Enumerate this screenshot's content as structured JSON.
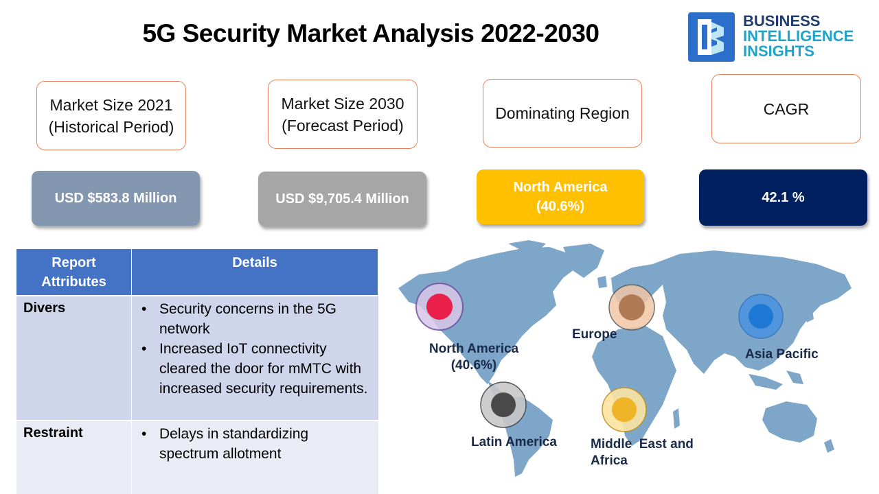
{
  "title": "5G Security Market Analysis 2022-2030",
  "logo": {
    "line1": "BUSINESS",
    "line2": "INTELLIGENCE",
    "line3": "INSIGHTS"
  },
  "cards": [
    {
      "label_line1": "Market Size 2021",
      "label_line2": "(Historical Period)",
      "value": "USD $583.8 Million",
      "color": "#8497b0"
    },
    {
      "label_line1": "Market Size 2030",
      "label_line2": "(Forecast Period)",
      "value": "USD $9,705.4 Million",
      "color": "#a6a6a6"
    },
    {
      "label_line1": "Dominating Region",
      "label_line2": "",
      "value_line1": "North America",
      "value_line2": "(40.6%)",
      "color": "#ffc000"
    },
    {
      "label_line1": "CAGR",
      "label_line2": "",
      "value": "42.1 %",
      "color": "#002060"
    }
  ],
  "table": {
    "headers": [
      "Report Attributes",
      "Details"
    ],
    "rows": [
      {
        "attribute": "Divers",
        "details": [
          "Security concerns in the 5G network",
          "Increased IoT connectivity cleared the door for mMTC with increased security requirements."
        ]
      },
      {
        "attribute": "Restraint",
        "details": [
          "Delays in standardizing spectrum allotment"
        ]
      }
    ],
    "header_color": "#4472c4",
    "row_colors": [
      "#cfd5ea",
      "#e9ebf5"
    ]
  },
  "map": {
    "regions": [
      {
        "name": "North America",
        "share": "(40.6%)",
        "color": "#e8204a"
      },
      {
        "name": "Europe",
        "color": "#c08a64"
      },
      {
        "name": "Asia Pacific",
        "color": "#1e78d6"
      },
      {
        "name": "Latin America",
        "color": "#5a5a5a"
      },
      {
        "name": "Middle  East and",
        "name2": "Africa",
        "color": "#f0b429"
      }
    ],
    "land_color": "#7ea6c9"
  }
}
